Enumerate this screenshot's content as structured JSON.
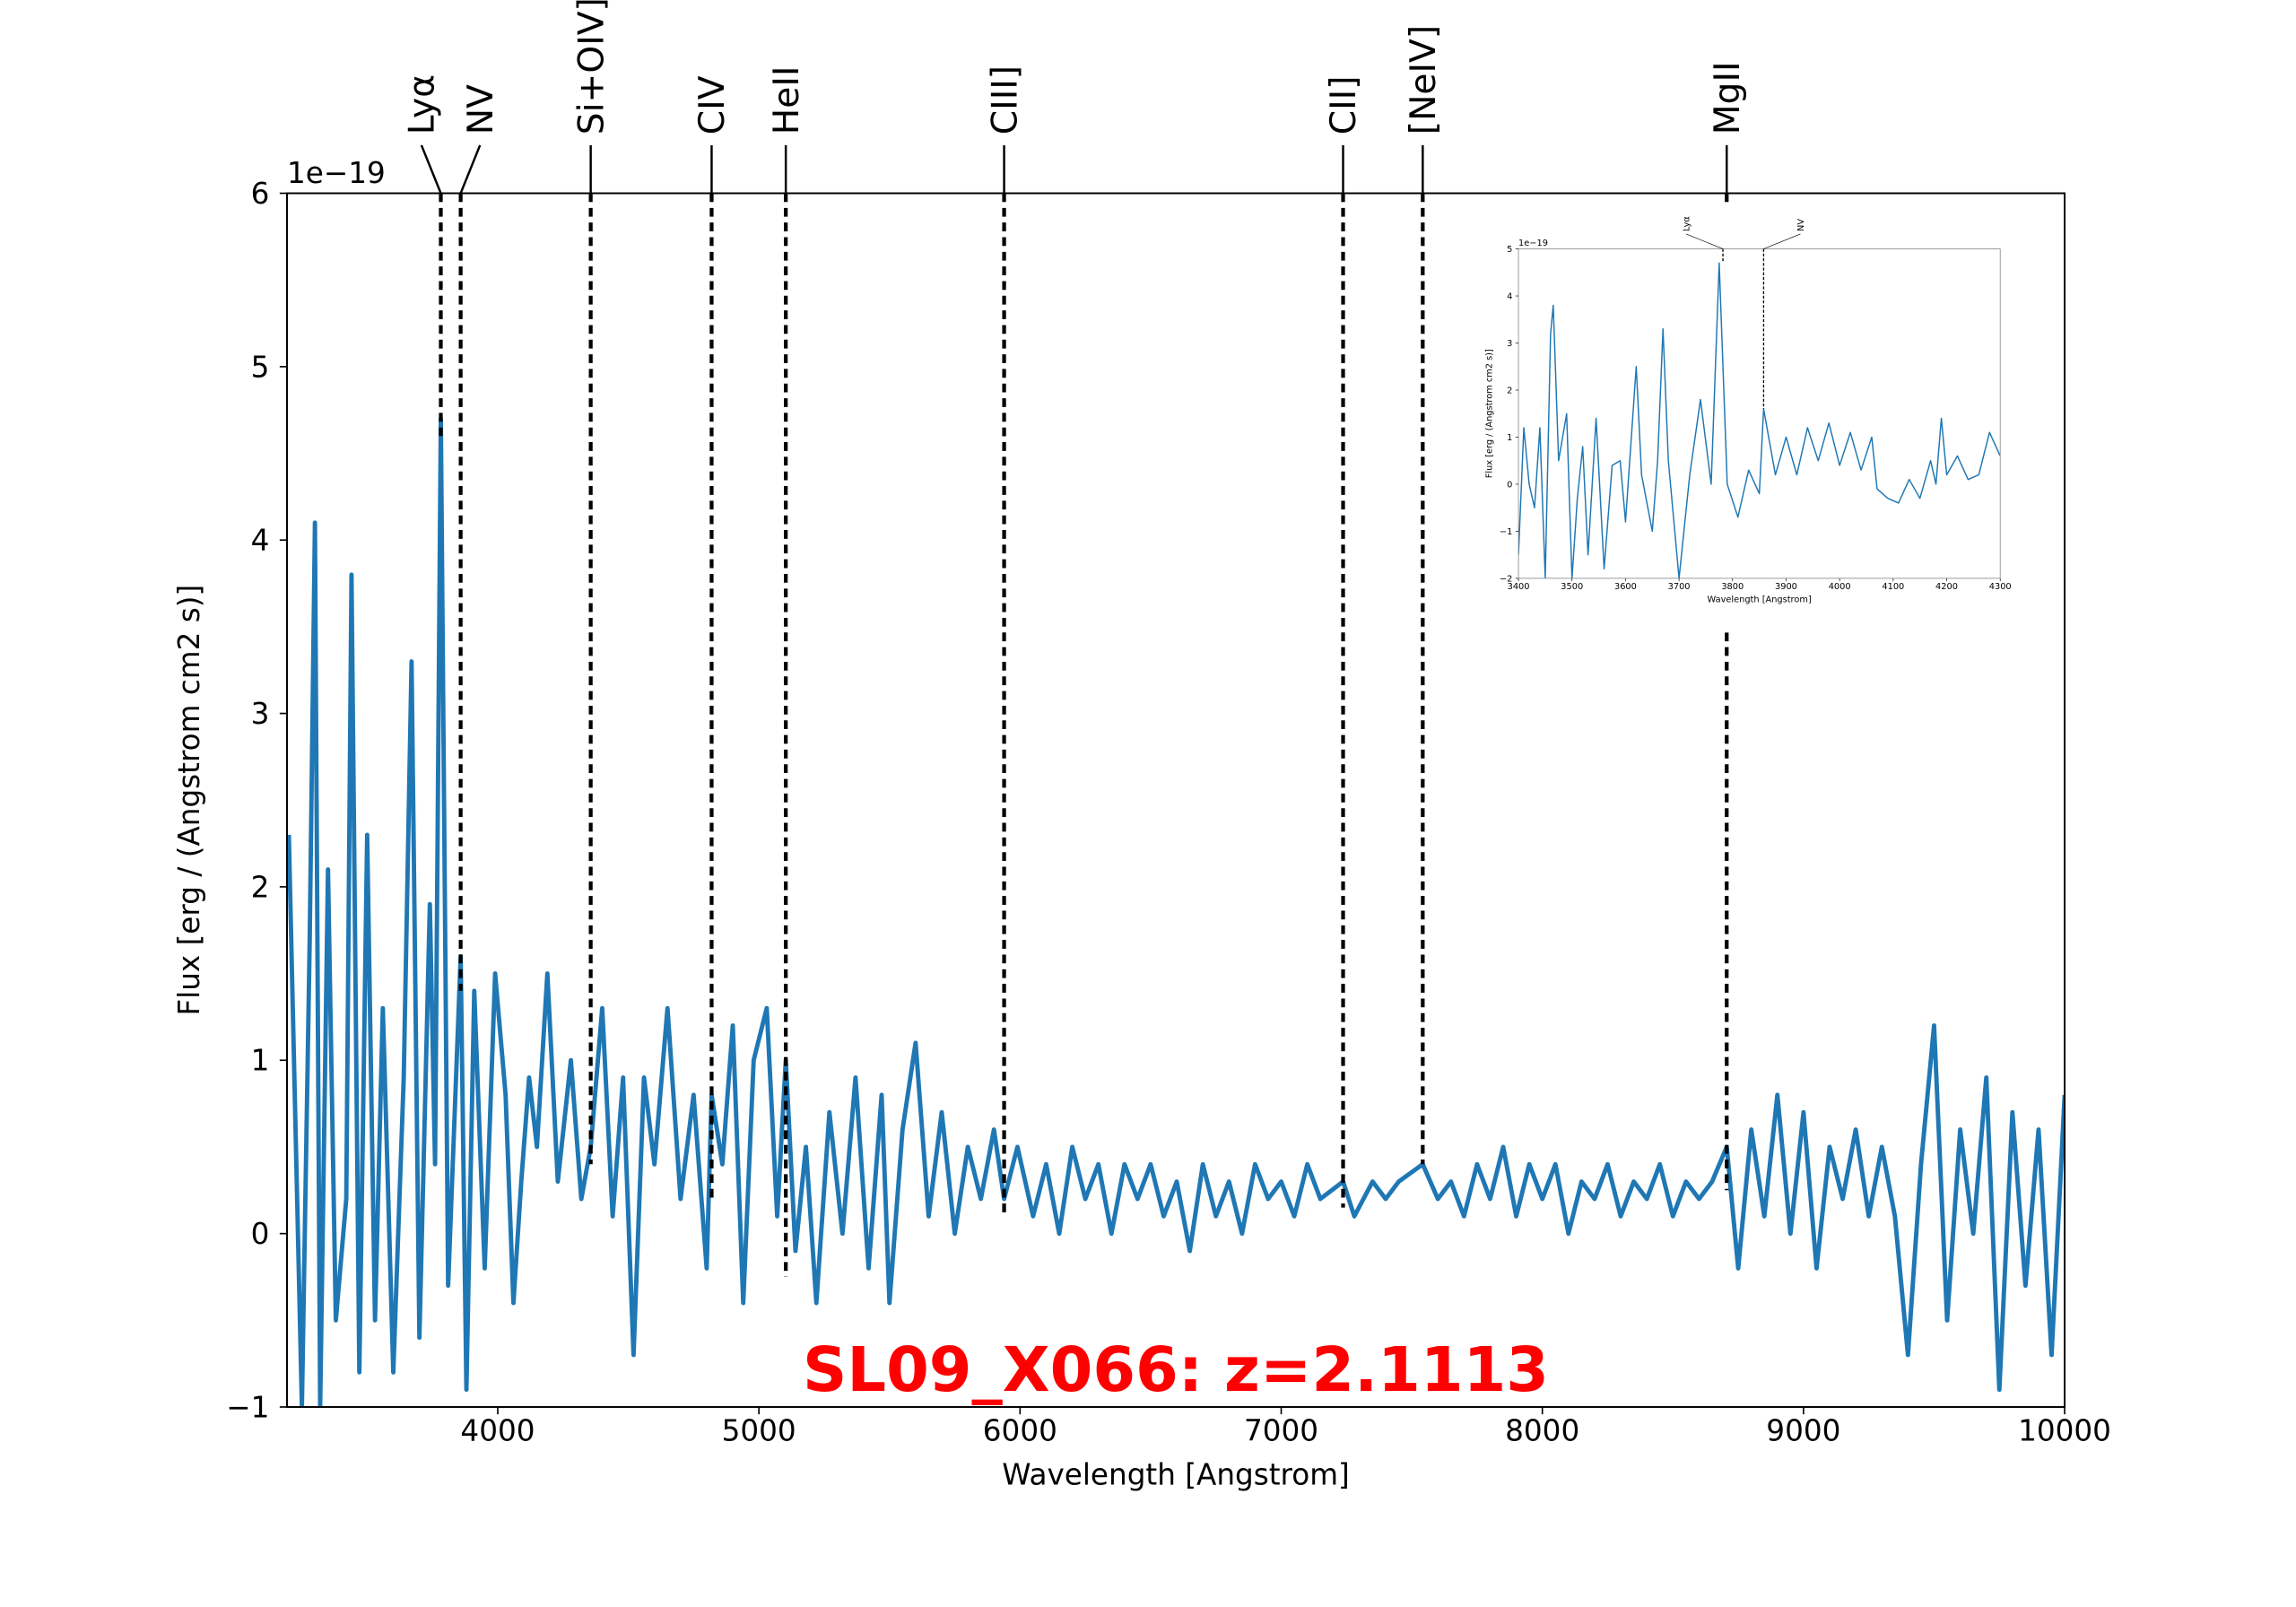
{
  "chart_data": [
    {
      "type": "line",
      "title": "SL09_X066: z=2.1113",
      "xlabel": "Wavelength [Angstrom]",
      "ylabel": "Flux [erg / (Angstrom cm2 s)]",
      "y_offset_label": "1e−19",
      "color": "#1f77b4",
      "xlim": [
        3193,
        10000
      ],
      "ylim": [
        -1,
        6
      ],
      "xticks": [
        4000,
        5000,
        6000,
        7000,
        8000,
        9000,
        10000
      ],
      "yticks": [
        {
          "value": -1,
          "label": "−1"
        },
        0,
        1,
        2,
        3,
        4,
        5,
        6
      ],
      "lines": [
        {
          "name": "Lyα",
          "x": 3782,
          "bottom": 4.6
        },
        {
          "name": "NV",
          "x": 3858,
          "bottom": 1.4
        },
        {
          "name": "Si+OIV]",
          "x": 4356,
          "bottom": 0.4
        },
        {
          "name": "CIV",
          "x": 4819,
          "bottom": 0.2
        },
        {
          "name": "HeII",
          "x": 5103,
          "bottom": -0.25
        },
        {
          "name": "CIII]",
          "x": 5939,
          "bottom": 0.1
        },
        {
          "name": "CII]",
          "x": 7237,
          "bottom": 0.15
        },
        {
          "name": "[NeIV]",
          "x": 7542,
          "bottom": 0.4
        },
        {
          "name": "MgII",
          "x": 8706,
          "bottom": 0.25
        }
      ],
      "x": [
        3200,
        3250,
        3280,
        3300,
        3320,
        3350,
        3380,
        3420,
        3440,
        3470,
        3500,
        3530,
        3560,
        3600,
        3640,
        3670,
        3700,
        3740,
        3760,
        3782,
        3810,
        3858,
        3880,
        3910,
        3950,
        3990,
        4030,
        4060,
        4090,
        4120,
        4150,
        4190,
        4230,
        4280,
        4320,
        4356,
        4400,
        4440,
        4480,
        4520,
        4560,
        4600,
        4650,
        4700,
        4750,
        4800,
        4819,
        4860,
        4900,
        4940,
        4980,
        5030,
        5070,
        5103,
        5140,
        5180,
        5220,
        5270,
        5320,
        5370,
        5420,
        5470,
        5500,
        5550,
        5600,
        5650,
        5700,
        5750,
        5800,
        5850,
        5900,
        5939,
        5990,
        6050,
        6100,
        6150,
        6200,
        6250,
        6300,
        6350,
        6400,
        6450,
        6500,
        6550,
        6600,
        6650,
        6700,
        6750,
        6800,
        6850,
        6900,
        6950,
        7000,
        7050,
        7100,
        7150,
        7237,
        7280,
        7350,
        7400,
        7450,
        7542,
        7600,
        7650,
        7700,
        7750,
        7800,
        7850,
        7900,
        7950,
        8000,
        8050,
        8100,
        8150,
        8200,
        8250,
        8300,
        8350,
        8400,
        8450,
        8500,
        8550,
        8600,
        8650,
        8706,
        8750,
        8800,
        8850,
        8900,
        8950,
        9000,
        9050,
        9100,
        9150,
        9200,
        9250,
        9300,
        9350,
        9400,
        9450,
        9500,
        9550,
        9600,
        9650,
        9700,
        9750,
        9800,
        9850,
        9900,
        9950,
        10000
      ],
      "values": [
        2.3,
        -1,
        1.7,
        4.1,
        -1,
        2.1,
        -0.5,
        0.2,
        3.8,
        -0.8,
        2.3,
        -0.5,
        1.3,
        -0.8,
        0.9,
        3.3,
        -0.6,
        1.9,
        0.4,
        4.7,
        -0.3,
        1.6,
        -0.9,
        1.4,
        -0.2,
        1.5,
        0.8,
        -0.4,
        0.3,
        0.9,
        0.5,
        1.5,
        0.3,
        1.0,
        0.2,
        0.5,
        1.3,
        0.1,
        0.9,
        -0.7,
        0.9,
        0.4,
        1.3,
        0.2,
        0.8,
        -0.2,
        0.8,
        0.4,
        1.2,
        -0.4,
        1.0,
        1.3,
        0.1,
        1.0,
        -0.1,
        0.5,
        -0.4,
        0.7,
        0.0,
        0.9,
        -0.2,
        0.8,
        -0.4,
        0.6,
        1.1,
        0.1,
        0.7,
        0.0,
        0.5,
        0.2,
        0.6,
        0.2,
        0.5,
        0.1,
        0.4,
        0.0,
        0.5,
        0.2,
        0.4,
        0.0,
        0.4,
        0.2,
        0.4,
        0.1,
        0.3,
        -0.1,
        0.4,
        0.1,
        0.3,
        0.0,
        0.4,
        0.2,
        0.3,
        0.1,
        0.4,
        0.2,
        0.3,
        0.1,
        0.3,
        0.2,
        0.3,
        0.4,
        0.2,
        0.3,
        0.1,
        0.4,
        0.2,
        0.5,
        0.1,
        0.4,
        0.2,
        0.4,
        0.0,
        0.3,
        0.2,
        0.4,
        0.1,
        0.3,
        0.2,
        0.4,
        0.1,
        0.3,
        0.2,
        0.3,
        0.5,
        -0.2,
        0.6,
        0.1,
        0.8,
        0.0,
        0.7,
        -0.2,
        0.5,
        0.2,
        0.6,
        0.1,
        0.5,
        0.1,
        -0.7,
        0.4,
        1.2,
        -0.5,
        0.6,
        0.0,
        0.9,
        -0.9,
        0.7,
        -0.3,
        0.6,
        -0.7,
        0.8
      ]
    },
    {
      "type": "line",
      "xlabel": "Wavelength [Angstrom]",
      "ylabel": "Flux [erg / (Angstrom cm2 s)]",
      "y_offset_label": "1e−19",
      "color": "#1f77b4",
      "xlim": [
        3400,
        4300
      ],
      "ylim": [
        -2,
        5
      ],
      "xticks": [
        3400,
        3500,
        3600,
        3700,
        3800,
        3900,
        4000,
        4100,
        4200,
        4300
      ],
      "yticks": [
        {
          "value": -2,
          "label": "−2"
        },
        {
          "value": -1,
          "label": "−1"
        },
        0,
        1,
        2,
        3,
        4,
        5
      ],
      "lines": [
        {
          "name": "Lyα",
          "x": 3782,
          "bottom": 4.7
        },
        {
          "name": "NV",
          "x": 3858,
          "bottom": 1.6
        }
      ],
      "x": [
        3400,
        3410,
        3420,
        3430,
        3440,
        3450,
        3460,
        3465,
        3475,
        3490,
        3500,
        3510,
        3520,
        3530,
        3545,
        3560,
        3575,
        3590,
        3600,
        3620,
        3630,
        3650,
        3660,
        3670,
        3680,
        3700,
        3720,
        3740,
        3760,
        3775,
        3790,
        3810,
        3830,
        3850,
        3858,
        3880,
        3900,
        3920,
        3940,
        3960,
        3980,
        4000,
        4020,
        4040,
        4060,
        4070,
        4090,
        4110,
        4130,
        4150,
        4170,
        4180,
        4190,
        4200,
        4220,
        4240,
        4260,
        4280,
        4300
      ],
      "values": [
        -1.5,
        1.2,
        0,
        -0.5,
        1.2,
        -2,
        3.2,
        3.8,
        0.5,
        1.5,
        -2,
        -0.3,
        0.8,
        -1.5,
        1.4,
        -1.8,
        0.4,
        0.5,
        -0.8,
        2.5,
        0.2,
        -1,
        0.5,
        3.3,
        0.5,
        -2,
        0.2,
        1.8,
        0,
        4.7,
        0,
        -0.7,
        0.3,
        -0.2,
        1.6,
        0.2,
        1,
        0.2,
        1.2,
        0.5,
        1.3,
        0.4,
        1.1,
        0.3,
        1.0,
        -0.1,
        -0.3,
        -0.4,
        0.1,
        -0.3,
        0.5,
        0,
        1.4,
        0.2,
        0.6,
        0.1,
        0.2,
        1.1,
        0.6
      ]
    }
  ]
}
